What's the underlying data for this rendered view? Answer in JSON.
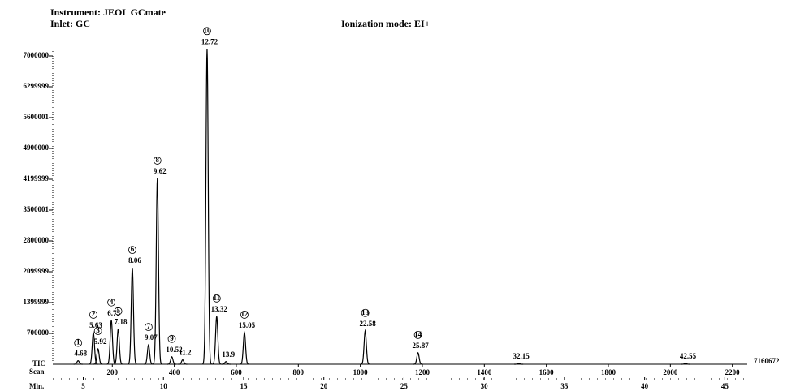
{
  "header": {
    "instrument": "Instrument: JEOL GCmate",
    "inlet": "Inlet: GC",
    "ionization": "Ionization mode: EI+"
  },
  "chart_data": {
    "type": "chromatogram",
    "x": [
      4.68,
      5.63,
      5.92,
      6.75,
      7.18,
      8.06,
      9.07,
      9.62,
      10.52,
      12.72,
      13.32,
      15.05,
      22.58,
      25.87,
      11.2,
      13.9,
      32.15,
      42.55
    ],
    "values": [
      80000,
      720000,
      350000,
      1000000,
      800000,
      2190000,
      440000,
      4220000,
      170000,
      7160672,
      1090000,
      720000,
      760000,
      260000,
      100000,
      60000,
      20000,
      20000
    ],
    "peak_numbers": [
      1,
      2,
      3,
      4,
      5,
      6,
      7,
      8,
      9,
      10,
      11,
      12,
      13,
      14,
      null,
      null,
      null,
      null
    ],
    "color": "#000000",
    "xlim": [
      3.1,
      46.4
    ],
    "xticks": [
      5,
      10,
      15,
      20,
      25,
      30,
      35,
      40,
      45
    ],
    "xlabel": "Min.",
    "x2lim": [
      8,
      2248
    ],
    "x2ticks": [
      200,
      400,
      600,
      800,
      1000,
      1200,
      1400,
      1600,
      1800,
      2000,
      2200
    ],
    "x2label": "Scan",
    "ylim": [
      0,
      7000000
    ],
    "yticks": [
      700000,
      1399999,
      2099999,
      2800000,
      3500001,
      4199999,
      4900000,
      5600001,
      6299999,
      7000000
    ],
    "baseline_label": "TIC",
    "tic_max": 7160672
  }
}
